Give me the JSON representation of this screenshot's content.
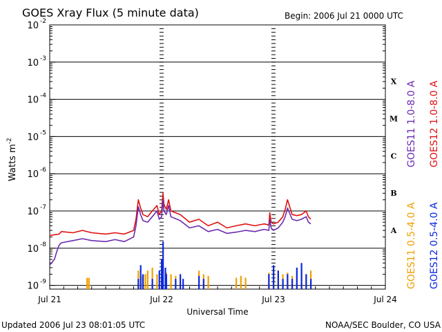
{
  "chart_data": {
    "type": "line",
    "title": "GOES Xray Flux (5 minute data)",
    "begin_label": "Begin:  2006 Jul 21 0000 UTC",
    "xlabel": "Universal Time",
    "ylabel": "Watts m",
    "ylabel_sup": "-2",
    "updated": "Updated 2006 Jul 23 08:01:05 UTC",
    "credit": "NOAA/SEC Boulder, CO USA",
    "xlim": [
      0,
      72
    ],
    "ylim_log10": [
      -9.1,
      -2
    ],
    "yscale": "log",
    "x_ticks": [
      {
        "x": 0,
        "label": "Jul 21"
      },
      {
        "x": 24,
        "label": "Jul 22"
      },
      {
        "x": 48,
        "label": "Jul 23"
      },
      {
        "x": 72,
        "label": "Jul 24"
      }
    ],
    "y_ticks": [
      {
        "exp": -9,
        "base": "10",
        "sup": "-9"
      },
      {
        "exp": -8,
        "base": "10",
        "sup": "-8"
      },
      {
        "exp": -7,
        "base": "10",
        "sup": "-7"
      },
      {
        "exp": -6,
        "base": "10",
        "sup": "-6"
      },
      {
        "exp": -5,
        "base": "10",
        "sup": "-5"
      },
      {
        "exp": -4,
        "base": "10",
        "sup": "-4"
      },
      {
        "exp": -3,
        "base": "10",
        "sup": "-3"
      },
      {
        "exp": -2,
        "base": "10",
        "sup": "-2"
      }
    ],
    "flare_classes": [
      {
        "label": "A",
        "exp": -8
      },
      {
        "label": "B",
        "exp": -7
      },
      {
        "label": "C",
        "exp": -6
      },
      {
        "label": "M",
        "exp": -5
      },
      {
        "label": "X",
        "exp": -4
      }
    ],
    "legend_long": [
      {
        "name": "GOES11 1.0-8.0 A",
        "color": "#6a2ab0"
      },
      {
        "name": "GOES12 1.0-8.0 A",
        "color": "#e01010"
      }
    ],
    "legend_short": [
      {
        "name": "GOES11 0.5-4.0 A",
        "color": "#f0a000"
      },
      {
        "name": "GOES12 0.5-4.0 A",
        "color": "#0a28e0"
      }
    ],
    "series": [
      {
        "name": "GOES12 1.0-8.0 A",
        "color": "#e01010",
        "x": [
          0,
          2,
          2.5,
          5,
          7,
          9,
          12,
          14,
          16,
          18,
          18.5,
          19,
          19.5,
          20,
          21,
          22,
          23,
          23.5,
          24,
          24.3,
          24.5,
          25,
          25.5,
          26,
          28,
          30,
          32,
          34,
          36,
          38,
          40,
          42,
          44,
          46,
          47,
          47.2,
          47.5,
          48,
          49,
          50,
          50.5,
          51,
          52,
          53,
          54,
          55,
          55.5,
          56
        ],
        "y": [
          2.2e-08,
          2.4e-08,
          2.8e-08,
          2.6e-08,
          3e-08,
          2.6e-08,
          2.4e-08,
          2.6e-08,
          2.4e-08,
          3e-08,
          6e-08,
          2e-07,
          1.2e-07,
          8e-08,
          7e-08,
          1e-07,
          1.4e-07,
          8e-08,
          1e-07,
          3e-07,
          1.5e-07,
          1.1e-07,
          2e-07,
          1e-07,
          8e-08,
          5e-08,
          6e-08,
          4e-08,
          5e-08,
          3.5e-08,
          4e-08,
          4.5e-08,
          4e-08,
          4.5e-08,
          4.2e-08,
          9e-08,
          5e-08,
          4.5e-08,
          5e-08,
          7e-08,
          1.1e-07,
          2e-07,
          8e-08,
          7.5e-08,
          8e-08,
          1e-07,
          7e-08,
          6e-08
        ]
      },
      {
        "name": "GOES11 1.0-8.0 A",
        "color": "#6a2ab0",
        "x": [
          0,
          1,
          1.5,
          2,
          2.5,
          5,
          7,
          9,
          12,
          14,
          16,
          18,
          18.5,
          19,
          19.5,
          20,
          21,
          22,
          23,
          23.5,
          24,
          24.3,
          24.5,
          25,
          25.5,
          26,
          28,
          30,
          32,
          34,
          36,
          38,
          40,
          42,
          44,
          46,
          47,
          47.2,
          47.5,
          48,
          49,
          50,
          50.5,
          51,
          52,
          53,
          54,
          55,
          55.5,
          56
        ],
        "y": [
          3.5e-09,
          5e-09,
          8e-09,
          1.2e-08,
          1.4e-08,
          1.6e-08,
          1.8e-08,
          1.6e-08,
          1.5e-08,
          1.7e-08,
          1.5e-08,
          2e-08,
          4e-08,
          1.3e-07,
          8e-08,
          5.5e-08,
          5e-08,
          7e-08,
          1e-07,
          6e-08,
          7e-08,
          2e-07,
          1e-07,
          8e-08,
          1.4e-07,
          7e-08,
          5.5e-08,
          3.5e-08,
          4e-08,
          2.8e-08,
          3.2e-08,
          2.5e-08,
          2.7e-08,
          3e-08,
          2.8e-08,
          3.2e-08,
          3e-08,
          6e-08,
          3.5e-08,
          3e-08,
          3.5e-08,
          5e-08,
          7e-08,
          1.2e-07,
          6e-08,
          5.5e-08,
          6e-08,
          7e-08,
          5e-08,
          4.5e-08
        ]
      },
      {
        "name": "GOES11 0.5-4.0 A",
        "color": "#f0a000",
        "x": [
          8,
          8.4,
          19,
          19.6,
          20.5,
          21,
          22,
          23,
          24,
          25,
          26,
          27,
          28,
          32,
          33,
          34,
          40,
          41,
          42,
          47,
          48,
          49,
          50,
          51,
          52,
          53,
          54,
          55,
          56
        ],
        "y": [
          1.6e-09,
          1.6e-09,
          2.5e-09,
          1.8e-09,
          2e-09,
          2.5e-09,
          3e-09,
          2e-09,
          4e-09,
          2.2e-09,
          2e-09,
          1.8e-09,
          2e-09,
          2.5e-09,
          2e-09,
          1.8e-09,
          1.6e-09,
          1.8e-09,
          1.6e-09,
          2.2e-09,
          3e-09,
          2.5e-09,
          2e-09,
          2.2e-09,
          1.8e-09,
          2e-09,
          2.5e-09,
          2e-09,
          2.5e-09
        ]
      },
      {
        "name": "GOES12 0.5-4.0 A",
        "color": "#0a28e0",
        "x": [
          19,
          19.5,
          20,
          22,
          23.5,
          24,
          24.3,
          24.8,
          25,
          27,
          28,
          28.6,
          32,
          33,
          47,
          48,
          49,
          50,
          51,
          52,
          53,
          54,
          55,
          56
        ],
        "y": [
          1.5e-09,
          3.5e-09,
          2e-09,
          1.5e-09,
          2.5e-09,
          5e-09,
          1.5e-08,
          3e-09,
          2e-09,
          1.5e-09,
          2e-09,
          1.5e-09,
          1.8e-09,
          1.5e-09,
          2e-09,
          3.5e-09,
          2.5e-09,
          1.5e-09,
          2e-09,
          1.5e-09,
          3e-09,
          4e-09,
          2e-09,
          1.5e-09
        ]
      }
    ]
  }
}
